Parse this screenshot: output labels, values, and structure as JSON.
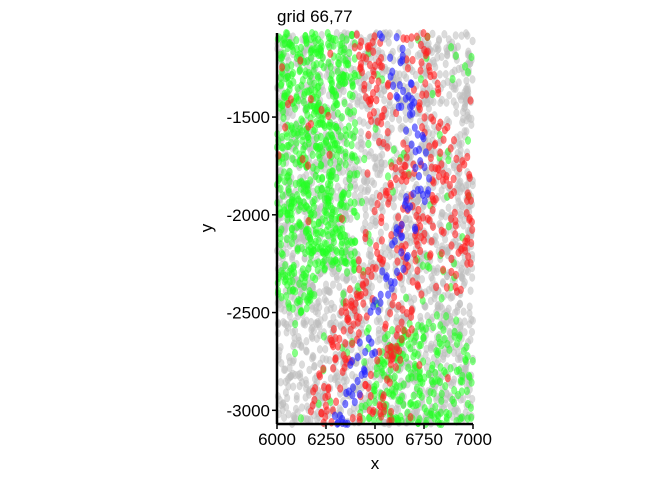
{
  "chart_data": {
    "type": "scatter",
    "title": "grid 66,77",
    "xlabel": "x",
    "ylabel": "y",
    "xlim": [
      6000,
      7000
    ],
    "ylim": [
      -3070,
      -1070
    ],
    "x_ticks": [
      6000,
      6250,
      6500,
      6750,
      7000
    ],
    "x_tick_labels": [
      "6000",
      "6250",
      "6500",
      "6750",
      "7000"
    ],
    "y_ticks": [
      -1500,
      -2000,
      -2500,
      -3000
    ],
    "y_tick_labels": [
      "-1500",
      "-2000",
      "-2500",
      "-3000"
    ],
    "grid": false,
    "legend": "none",
    "marker": "small semi-transparent ellipse",
    "series_colors": {
      "gray": "#bdbdbd",
      "green": "#22ff22",
      "red": "#ff2222",
      "blue": "#2222ff"
    },
    "point_counts": {
      "gray": 2000,
      "green": 950,
      "red": 420,
      "blue": 110
    }
  }
}
